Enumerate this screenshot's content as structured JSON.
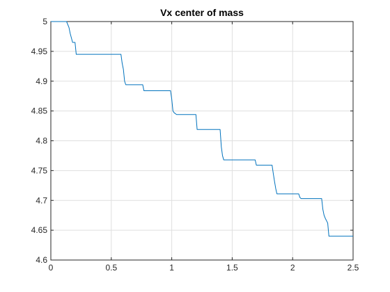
{
  "chart_data": {
    "type": "line",
    "title": "Vx center of mass",
    "xlabel": "",
    "ylabel": "",
    "xlim": [
      0,
      2.5
    ],
    "ylim": [
      4.6,
      5
    ],
    "x_ticks": [
      0,
      0.5,
      1,
      1.5,
      2,
      2.5
    ],
    "x_tick_labels": [
      "0",
      "0.5",
      "1",
      "1.5",
      "2",
      "2.5"
    ],
    "y_ticks": [
      4.6,
      4.65,
      4.7,
      4.75,
      4.8,
      4.85,
      4.9,
      4.95,
      5
    ],
    "y_tick_labels": [
      "4.6",
      "4.65",
      "4.7",
      "4.75",
      "4.8",
      "4.85",
      "4.9",
      "4.95",
      "5"
    ],
    "grid": true,
    "legend": "none",
    "series": [
      {
        "color": "#0072bd",
        "x": [
          0,
          0.13,
          0.15,
          0.16,
          0.18,
          0.2,
          0.21,
          0.58,
          0.59,
          0.6,
          0.61,
          0.62,
          0.76,
          0.77,
          0.99,
          1.0,
          1.01,
          1.02,
          1.04,
          1.2,
          1.21,
          1.4,
          1.41,
          1.42,
          1.43,
          1.69,
          1.7,
          1.83,
          1.84,
          1.85,
          1.86,
          1.87,
          2.05,
          2.06,
          2.07,
          2.24,
          2.25,
          2.26,
          2.27,
          2.29,
          2.3,
          2.5
        ],
        "y": [
          5.0,
          5.0,
          4.99,
          4.98,
          4.965,
          4.965,
          4.945,
          4.945,
          4.93,
          4.92,
          4.9,
          4.894,
          4.894,
          4.884,
          4.884,
          4.87,
          4.85,
          4.847,
          4.844,
          4.844,
          4.819,
          4.819,
          4.79,
          4.775,
          4.768,
          4.768,
          4.759,
          4.759,
          4.745,
          4.732,
          4.72,
          4.711,
          4.711,
          4.705,
          4.703,
          4.703,
          4.685,
          4.675,
          4.67,
          4.662,
          4.64,
          4.64
        ]
      }
    ]
  }
}
